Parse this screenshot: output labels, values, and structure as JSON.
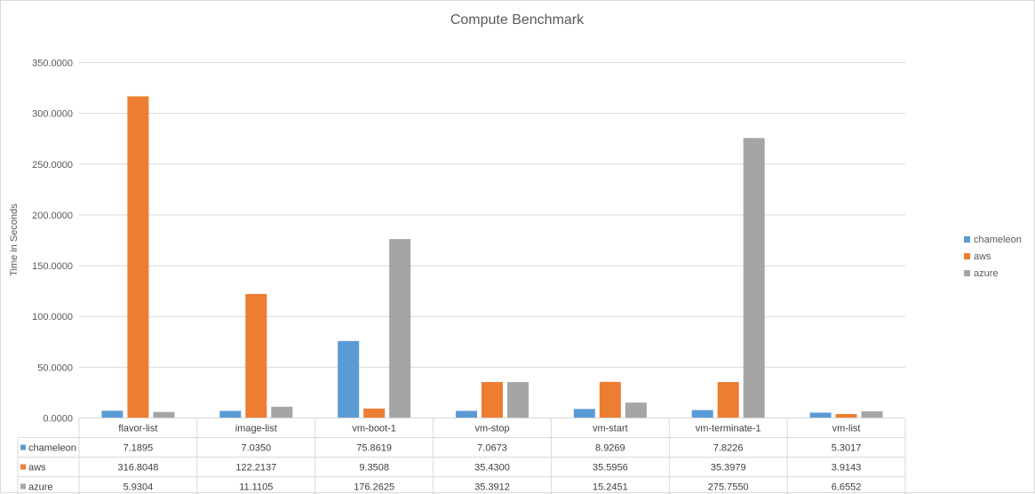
{
  "chart_data": {
    "type": "bar",
    "title": "Compute Benchmark",
    "xlabel": "",
    "ylabel": "Time in Seconds",
    "ylim": [
      0,
      350
    ],
    "yticks": [
      "0.0000",
      "50.0000",
      "100.0000",
      "150.0000",
      "200.0000",
      "250.0000",
      "300.0000",
      "350.0000"
    ],
    "grid": true,
    "legend_position": "right",
    "categories": [
      "flavor-list",
      "image-list",
      "vm-boot-1",
      "vm-stop",
      "vm-start",
      "vm-terminate-1",
      "vm-list"
    ],
    "series": [
      {
        "name": "chameleon",
        "color": "#5b9bd5",
        "values": [
          7.1895,
          7.035,
          75.8619,
          7.0673,
          8.9269,
          7.8226,
          5.3017
        ],
        "labels": [
          "7.1895",
          "7.0350",
          "75.8619",
          "7.0673",
          "8.9269",
          "7.8226",
          "5.3017"
        ]
      },
      {
        "name": "aws",
        "color": "#ed7d31",
        "values": [
          316.8048,
          122.2137,
          9.3508,
          35.43,
          35.5956,
          35.3979,
          3.9143
        ],
        "labels": [
          "316.8048",
          "122.2137",
          "9.3508",
          "35.4300",
          "35.5956",
          "35.3979",
          "3.9143"
        ]
      },
      {
        "name": "azure",
        "color": "#a5a5a5",
        "values": [
          5.9304,
          11.1105,
          176.2625,
          35.3912,
          15.2451,
          275.755,
          6.6552
        ],
        "labels": [
          "5.9304",
          "11.1105",
          "176.2625",
          "35.3912",
          "15.2451",
          "275.7550",
          "6.6552"
        ]
      }
    ]
  }
}
